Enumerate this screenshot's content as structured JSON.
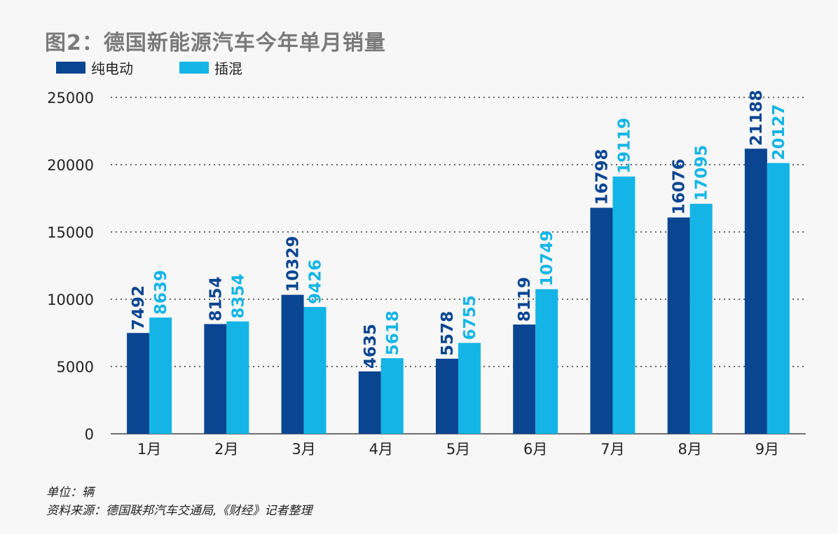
{
  "title": "图2：德国新能源汽车今年单月销量",
  "colors": {
    "bev": "#0a4592",
    "phev": "#14b5e6"
  },
  "footnotes": {
    "unit": "单位：辆",
    "source": "资料来源：德国联邦汽车交通局,《财经》记者整理"
  },
  "chart_data": {
    "type": "bar",
    "title": "图2：德国新能源汽车今年单月销量",
    "xlabel": "",
    "ylabel": "",
    "categories": [
      "1月",
      "2月",
      "3月",
      "4月",
      "5月",
      "6月",
      "7月",
      "8月",
      "9月"
    ],
    "series": [
      {
        "name": "纯电动",
        "values": [
          7492,
          8154,
          10329,
          4635,
          5578,
          8119,
          16798,
          16076,
          21188
        ]
      },
      {
        "name": "插混",
        "values": [
          8639,
          8354,
          9426,
          5618,
          6755,
          10749,
          19119,
          17095,
          20127
        ]
      }
    ],
    "ylim": [
      0,
      25000
    ],
    "yticks": [
      0,
      5000,
      10000,
      15000,
      20000,
      25000
    ],
    "grid": "horizontal dotted",
    "legend": "top-left",
    "data_labels": "rotated vertical above bars"
  }
}
